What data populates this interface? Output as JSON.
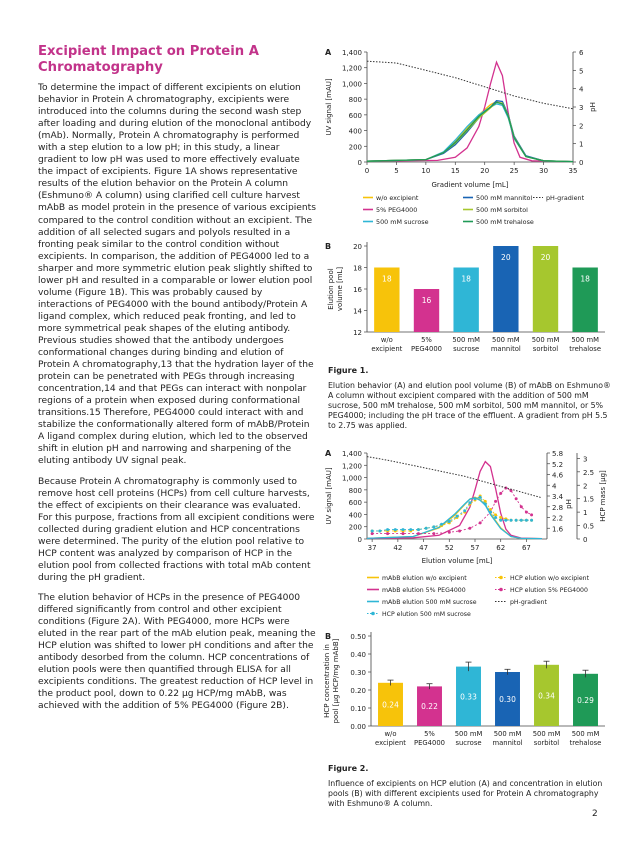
{
  "title": "Excipient Impact on Protein A Chromatography",
  "paragraphs": [
    "To determine the impact of different excipients on elution behavior in Protein A chromatography, excipients were introduced into the columns during the second wash step after loading and during elution of the monoclonal antibody (mAb). Normally, Protein A chromatography is performed with a step elution to a low pH; in this study, a linear gradient to low pH was used to more effectively evaluate the impact of excipients. Figure 1A shows representative results of the elution behavior on the Protein A column (Eshmuno® A column) using clarified cell culture harvest mAbB as model protein in the presence of various excipients compared to the control condition without an excipient. The addition of all selected sugars and polyols resulted in a fronting peak similar to the control condition without excipients. In comparison, the addition of PEG4000 led to a sharper and more symmetric elution peak slightly shifted to lower pH and resulted in a comparable or lower elution pool volume (Figure 1B). This was probably caused by interactions of PEG4000 with the bound antibody/Protein A ligand complex, which reduced peak fronting, and led to more symmetrical peak shapes of the eluting antibody. Previous studies showed that the antibody undergoes conformational changes during binding and elution of Protein A chromatography,13 that the hydration layer of the protein can be penetrated with PEGs through increasing concentration,14 and that PEGs can interact with nonpolar regions of a protein when exposed during conformational transitions.15 Therefore, PEG4000 could interact with and stabilize the conformationally altered form of mAbB/Protein A ligand complex during elution, which led to the observed shift in elution pH and narrowing and sharpening of the eluting antibody UV signal peak.",
    "Because Protein A chromatography is commonly used to remove host cell proteins (HCPs) from cell culture harvests, the effect of excipients on their clearance was evaluated. For this purpose, fractions from all excipient conditions were collected during gradient elution and HCP concentrations were determined. The purity of the elution pool relative to HCP content was analyzed by comparison of HCP in the elution pool from collected fractions with total mAb content during the pH gradient.",
    "The elution behavior of HCPs in the presence of PEG4000 differed significantly from control and other excipient conditions (Figure 2A). With PEG4000, more HCPs were eluted in the rear part of the mAb elution peak, meaning the HCP elution was shifted to lower pH conditions and after the antibody desorbed from the column. HCP concentrations of elution pools were then quantified through ELISA for all excipients conditions. The greatest reduction of HCP level in the product pool, down to 0.22 µg HCP/mg mAbB, was achieved with the addition of 5% PEG4000 (Figure 2B)."
  ],
  "figure1": {
    "panelA": {
      "letter": "A",
      "ylabel": "UV signal [mAU]",
      "y2label": "pH",
      "xlabel": "Gradient volume [mL]",
      "yticks": [
        "0",
        "200",
        "400",
        "600",
        "800",
        "1,000",
        "1,200",
        "1,400"
      ],
      "y2ticks": [
        "0",
        "1",
        "2",
        "3",
        "4",
        "5",
        "6"
      ],
      "xticks": [
        "0",
        "5",
        "10",
        "15",
        "20",
        "25",
        "30",
        "35"
      ],
      "legend": [
        "w/o excipient",
        "500 mM mannitol",
        "pH-gradient",
        "5% PEG4000",
        "500 mM sorbitol",
        "500 mM sucrose",
        "500 mM trehalose"
      ]
    },
    "panelB": {
      "letter": "B",
      "ylabel": "Elution pool volume [mL]",
      "yticks": [
        "12",
        "14",
        "16",
        "18",
        "20"
      ],
      "categories": [
        "w/o excipient",
        "5% PEG4000",
        "500 mM sucrose",
        "500 mM mannitol",
        "500 mM sorbitol",
        "500 mM trehalose"
      ],
      "values": [
        "18",
        "16",
        "18",
        "20",
        "20",
        "18"
      ]
    },
    "caption_label": "Figure 1.",
    "caption": "Elution behavior (A) and elution pool volume (B) of mAbB on Eshmuno® A column without excipient compared with the addition of 500 mM sucrose, 500 mM trehalose, 500 mM sorbitol, 500 mM mannitol, or 5% PEG4000; including the pH trace of the effluent. A gradient from pH 5.5 to 2.75 was applied."
  },
  "figure2": {
    "panelA": {
      "letter": "A",
      "ylabel": "UV signal [mAU]",
      "y2label": "pH",
      "y3label": "HCP mass [µg]",
      "xlabel": "Elution volume [mL]",
      "yticks": [
        "0",
        "200",
        "400",
        "600",
        "800",
        "1,000",
        "1,200",
        "1,400"
      ],
      "phticks": [
        "1.6",
        "2.2",
        "2.8",
        "3.4",
        "4",
        "4.6",
        "5.2",
        "5.8"
      ],
      "hcpticks": [
        "0",
        "0.5",
        "1",
        "1.5",
        "2",
        "2.5",
        "3"
      ],
      "xticks": [
        "37",
        "42",
        "47",
        "52",
        "57",
        "62",
        "67"
      ],
      "legend": [
        "mAbB elution w/o excipient",
        "HCP elution w/o excipient",
        "mAbB elution 5% PEG4000",
        "HCP elution 5% PEG4000",
        "mAbB elution 500 mM sucrose",
        "pH-gradient",
        "HCP elution 500 mM sucrose"
      ]
    },
    "panelB": {
      "letter": "B",
      "ylabel": "HCP concentration in pool [µg HCP/mg mAbB]",
      "yticks": [
        "0.00",
        "0.10",
        "0.20",
        "0.30",
        "0.40",
        "0.50"
      ],
      "categories": [
        "w/o excipient",
        "5% PEG4000",
        "500 mM sucrose",
        "500 mM mannitol",
        "500 mM sorbitol",
        "500 mM trehalose"
      ],
      "values": [
        "0.24",
        "0.22",
        "0.33",
        "0.30",
        "0.34",
        "0.29"
      ]
    },
    "caption_label": "Figure 2.",
    "caption": "Influence of excipients on HCP elution (A) and concentration in elution pools (B) with different excipients used for Protein A chromatography with Eshmuno® A column."
  },
  "page_number": "2",
  "colors": {
    "title": "#c2338a",
    "yellow": "#f7c30a",
    "magenta": "#d3328f",
    "cyan": "#2fb6d6",
    "blue": "#1964b4",
    "lime": "#a6c72e",
    "green": "#1f9a57"
  },
  "chart_data": [
    {
      "type": "line",
      "title": "",
      "xlabel": "Gradient volume [mL]",
      "ylabel": "UV signal [mAU]",
      "y2label": "pH",
      "xlim": [
        0,
        35
      ],
      "ylim": [
        0,
        1400
      ],
      "y2lim": [
        0,
        6
      ],
      "series": [
        {
          "name": "w/o excipient",
          "color": "#f7c30a",
          "x": [
            0,
            10,
            13,
            15,
            17,
            19,
            21,
            22,
            23,
            24,
            25,
            27,
            30,
            35
          ],
          "y": [
            10,
            30,
            120,
            260,
            430,
            600,
            730,
            770,
            730,
            560,
            300,
            70,
            15,
            5
          ]
        },
        {
          "name": "5% PEG4000",
          "color": "#d3328f",
          "x": [
            0,
            12,
            15,
            17,
            19,
            20,
            21,
            22,
            23,
            24,
            25,
            26,
            28,
            35
          ],
          "y": [
            10,
            20,
            60,
            180,
            450,
            700,
            1000,
            1270,
            1100,
            620,
            240,
            60,
            15,
            5
          ]
        },
        {
          "name": "500 mM sucrose",
          "color": "#2fb6d6",
          "x": [
            0,
            10,
            13,
            15,
            17,
            19,
            21,
            22,
            23,
            24,
            25,
            27,
            30,
            35
          ],
          "y": [
            10,
            30,
            130,
            280,
            450,
            600,
            700,
            740,
            720,
            560,
            300,
            70,
            15,
            5
          ]
        },
        {
          "name": "500 mM mannitol",
          "color": "#1964b4",
          "x": [
            0,
            10,
            13,
            15,
            17,
            19,
            21,
            22,
            23,
            24,
            25,
            27,
            30,
            35
          ],
          "y": [
            10,
            30,
            110,
            220,
            380,
            560,
            700,
            780,
            770,
            600,
            330,
            80,
            15,
            5
          ]
        },
        {
          "name": "500 mM sorbitol",
          "color": "#a6c72e",
          "x": [
            0,
            10,
            13,
            15,
            17,
            19,
            21,
            22,
            23,
            24,
            25,
            27,
            30,
            35
          ],
          "y": [
            10,
            30,
            120,
            240,
            400,
            560,
            690,
            760,
            750,
            590,
            320,
            70,
            15,
            5
          ]
        },
        {
          "name": "500 mM trehalose",
          "color": "#1f9a57",
          "x": [
            0,
            10,
            13,
            15,
            17,
            19,
            21,
            22,
            23,
            24,
            25,
            27,
            30,
            35
          ],
          "y": [
            10,
            30,
            120,
            250,
            410,
            580,
            700,
            760,
            740,
            580,
            310,
            70,
            15,
            5
          ]
        },
        {
          "name": "pH-gradient",
          "color": "#333333",
          "axis": "y2",
          "x": [
            0,
            5,
            10,
            15,
            20,
            25,
            30,
            35
          ],
          "y": [
            5.5,
            5.4,
            5.0,
            4.6,
            4.1,
            3.6,
            3.2,
            2.9
          ]
        }
      ]
    },
    {
      "type": "bar",
      "title": "",
      "xlabel": "",
      "ylabel": "Elution pool volume [mL]",
      "ylim": [
        12,
        20
      ],
      "categories": [
        "w/o excipient",
        "5% PEG4000",
        "500 mM sucrose",
        "500 mM mannitol",
        "500 mM sorbitol",
        "500 mM trehalose"
      ],
      "values": [
        18,
        16,
        18,
        20,
        20,
        18
      ],
      "colors": [
        "#f7c30a",
        "#d3328f",
        "#2fb6d6",
        "#1964b4",
        "#a6c72e",
        "#1f9a57"
      ]
    },
    {
      "type": "line",
      "title": "",
      "xlabel": "Elution volume [mL]",
      "ylabel": "UV signal [mAU]",
      "y2label": "pH",
      "y3label": "HCP mass [µg]",
      "xlim": [
        36,
        71
      ],
      "ylim": [
        0,
        1400
      ],
      "y2lim": [
        1.0,
        5.8
      ],
      "y3lim": [
        0,
        3.2
      ],
      "series": [
        {
          "name": "mAbB elution w/o excipient",
          "color": "#f7c30a",
          "x": [
            36,
            45,
            50,
            53,
            55,
            56,
            57,
            58,
            59,
            60,
            62,
            64,
            66,
            70
          ],
          "y": [
            10,
            40,
            180,
            380,
            560,
            650,
            680,
            640,
            560,
            420,
            180,
            40,
            10,
            5
          ]
        },
        {
          "name": "mAbB elution 5% PEG4000",
          "color": "#d3328f",
          "x": [
            36,
            45,
            50,
            54,
            56,
            57,
            58,
            59,
            60,
            61,
            62,
            63,
            64,
            66,
            70
          ],
          "y": [
            10,
            20,
            60,
            220,
            520,
            800,
            1100,
            1260,
            1180,
            820,
            420,
            160,
            60,
            15,
            5
          ]
        },
        {
          "name": "mAbB elution 500 mM sucrose",
          "color": "#2fb6d6",
          "x": [
            36,
            45,
            50,
            53,
            55,
            56,
            57,
            58,
            59,
            60,
            62,
            64,
            66,
            70
          ],
          "y": [
            10,
            40,
            190,
            400,
            570,
            650,
            670,
            630,
            550,
            400,
            170,
            40,
            10,
            5
          ]
        },
        {
          "name": "HCP elution w/o excipient",
          "color": "#f7c30a",
          "marker": "circle",
          "axis": "y3",
          "x": [
            37,
            38.5,
            40,
            41.5,
            43,
            44.5,
            46,
            47.5,
            49,
            50.5,
            52,
            53.5,
            55,
            56,
            57,
            58,
            59,
            60,
            61,
            62,
            63,
            64,
            65,
            66,
            67,
            68
          ],
          "y": [
            0.3,
            0.3,
            0.3,
            0.3,
            0.3,
            0.3,
            0.35,
            0.4,
            0.45,
            0.5,
            0.6,
            0.8,
            1.0,
            1.3,
            1.45,
            1.6,
            1.4,
            1.1,
            0.9,
            0.8,
            0.75,
            0.7,
            0.7,
            0.7,
            0.7,
            0.7
          ]
        },
        {
          "name": "HCP elution 5% PEG4000",
          "color": "#d3328f",
          "marker": "circle",
          "axis": "y3",
          "x": [
            37,
            40,
            43,
            46,
            49,
            52,
            54,
            56,
            58,
            60,
            61,
            62,
            63,
            64,
            65,
            66,
            67,
            68
          ],
          "y": [
            0.2,
            0.2,
            0.2,
            0.2,
            0.2,
            0.25,
            0.3,
            0.4,
            0.6,
            1.0,
            1.4,
            1.7,
            1.9,
            1.8,
            1.5,
            1.2,
            1.0,
            0.9
          ]
        },
        {
          "name": "HCP elution 500 mM sucrose",
          "color": "#2fb6d6",
          "marker": "circle",
          "axis": "y3",
          "x": [
            37,
            38.5,
            40,
            41.5,
            43,
            44.5,
            46,
            47.5,
            49,
            50.5,
            52,
            53.5,
            55,
            56,
            57,
            58,
            59,
            60,
            61,
            62,
            63,
            64,
            65,
            66,
            67,
            68
          ],
          "y": [
            0.3,
            0.3,
            0.35,
            0.35,
            0.35,
            0.35,
            0.35,
            0.4,
            0.45,
            0.55,
            0.65,
            0.85,
            1.05,
            1.35,
            1.5,
            1.55,
            1.3,
            1.0,
            0.8,
            0.7,
            0.7,
            0.7,
            0.7,
            0.7,
            0.7,
            0.7
          ]
        },
        {
          "name": "pH-gradient",
          "color": "#333333",
          "axis": "y2",
          "x": [
            36,
            40,
            45,
            50,
            55,
            60,
            65,
            70
          ],
          "y": [
            5.6,
            5.4,
            5.1,
            4.8,
            4.5,
            4.1,
            3.7,
            3.3
          ]
        }
      ]
    },
    {
      "type": "bar",
      "title": "",
      "xlabel": "",
      "ylabel": "HCP concentration in pool [µg HCP/mg mAbB]",
      "ylim": [
        0,
        0.5
      ],
      "categories": [
        "w/o excipient",
        "5% PEG4000",
        "500 mM sucrose",
        "500 mM mannitol",
        "500 mM sorbitol",
        "500 mM trehalose"
      ],
      "values": [
        0.24,
        0.22,
        0.33,
        0.3,
        0.34,
        0.29
      ],
      "errors": [
        0.015,
        0.015,
        0.025,
        0.015,
        0.02,
        0.02
      ],
      "colors": [
        "#f7c30a",
        "#d3328f",
        "#2fb6d6",
        "#1964b4",
        "#a6c72e",
        "#1f9a57"
      ]
    }
  ]
}
